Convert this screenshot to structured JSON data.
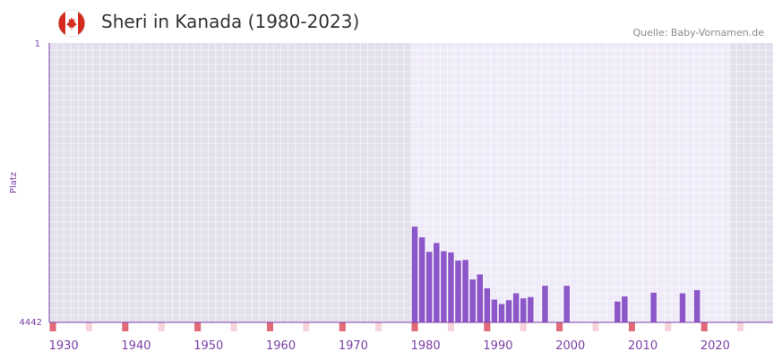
{
  "header": {
    "title": "Sheri in Kanada (1980-2023)",
    "source": "Quelle: Baby-Vornamen.de",
    "flag_icon": "canada-flag-icon"
  },
  "colors": {
    "bar": "#8c57c8",
    "axis": "#7b3fa6",
    "marker_decade": "#e06a78",
    "marker_mid": "#f7d3dc",
    "bg_dark": "#e3dfec",
    "bg_light": "#efeaf8",
    "flag_red": "#d52b1e"
  },
  "chart_data": {
    "type": "bar",
    "title": "Sheri in Kanada (1980-2023)",
    "ylabel": "Platz",
    "xlabel": "",
    "y_reversed": true,
    "ylim": [
      1,
      4442
    ],
    "xlim": [
      1928,
      2028
    ],
    "y_ticks": [
      "1",
      "4442"
    ],
    "x_ticks": [
      1930,
      1940,
      1950,
      1960,
      1970,
      1980,
      1990,
      2000,
      2010,
      2020
    ],
    "highlight_range": [
      1978,
      2022
    ],
    "series": [
      {
        "name": "Platz",
        "x": [
          1978,
          1979,
          1980,
          1981,
          1982,
          1983,
          1984,
          1985,
          1986,
          1987,
          1988,
          1989,
          1990,
          1991,
          1992,
          1993,
          1994,
          1996,
          1999,
          2006,
          2007,
          2011,
          2015,
          2017
        ],
        "values": [
          2920,
          3090,
          3320,
          3180,
          3310,
          3330,
          3460,
          3450,
          3760,
          3680,
          3900,
          4080,
          4150,
          4090,
          3980,
          4060,
          4040,
          3860,
          3860,
          4110,
          4030,
          3970,
          3980,
          3930
        ]
      }
    ]
  }
}
